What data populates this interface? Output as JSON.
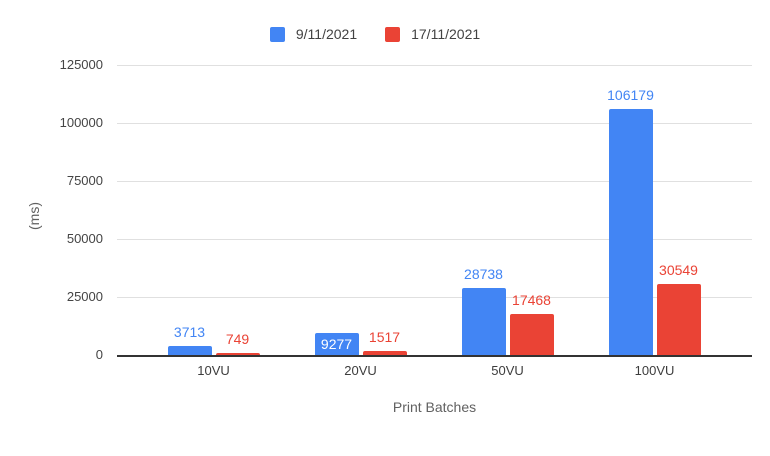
{
  "chart_data": {
    "type": "bar",
    "title": "",
    "categories": [
      "10VU",
      "20VU",
      "50VU",
      "100VU"
    ],
    "series": [
      {
        "name": "9/11/2021",
        "color": "#4285F4",
        "label_color": "#4285F4",
        "values": [
          3713,
          9277,
          28738,
          106179
        ],
        "inside_label_indexes": [
          1
        ]
      },
      {
        "name": "17/11/2021",
        "color": "#EA4335",
        "label_color": "#EA4335",
        "values": [
          749,
          1517,
          17468,
          30549
        ],
        "inside_label_indexes": []
      }
    ],
    "xlabel": "Print Batches",
    "ylabel": "(ms)",
    "ylim": [
      0,
      125000
    ],
    "yticks": [
      0,
      25000,
      50000,
      75000,
      100000,
      125000
    ],
    "grid": true,
    "legend_position": "top",
    "data_labels": true,
    "colors": {
      "background": "#ffffff",
      "gridline": "#e0e0e0",
      "axis_line": "#333333",
      "tick_label": "#444444",
      "axis_title": "#616161",
      "legend_text": "#424242",
      "inside_label": "#ffffff"
    }
  }
}
